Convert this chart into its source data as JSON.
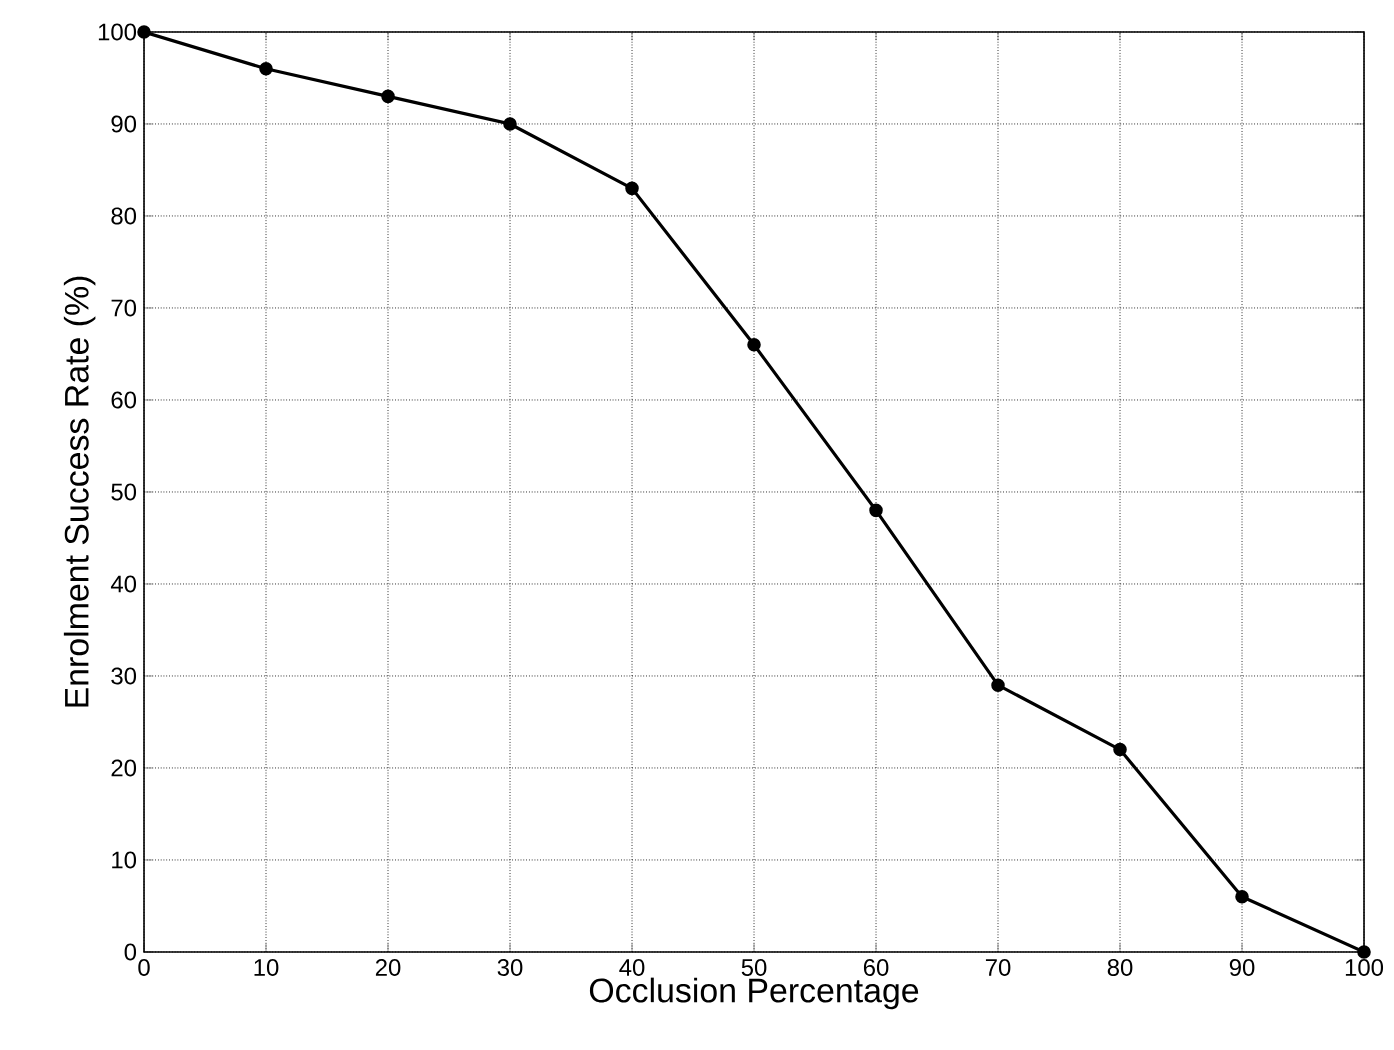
{
  "chart_data": {
    "type": "line",
    "xlabel": "Occlusion Percentage",
    "ylabel": "Enrolment Success Rate (%)",
    "x": [
      0,
      10,
      20,
      30,
      40,
      50,
      60,
      70,
      80,
      90,
      100
    ],
    "series": [
      {
        "color": "#000000",
        "values": [
          100,
          96,
          93,
          90,
          83,
          66,
          48,
          29,
          22,
          6,
          0
        ]
      }
    ],
    "xlim": [
      0,
      100
    ],
    "ylim": [
      0,
      100
    ],
    "xticks": [
      0,
      10,
      20,
      30,
      40,
      50,
      60,
      70,
      80,
      90,
      100
    ],
    "yticks": [
      0,
      10,
      20,
      30,
      40,
      50,
      60,
      70,
      80,
      90,
      100
    ],
    "grid": true,
    "marker": "circle",
    "line_style": "solid"
  }
}
